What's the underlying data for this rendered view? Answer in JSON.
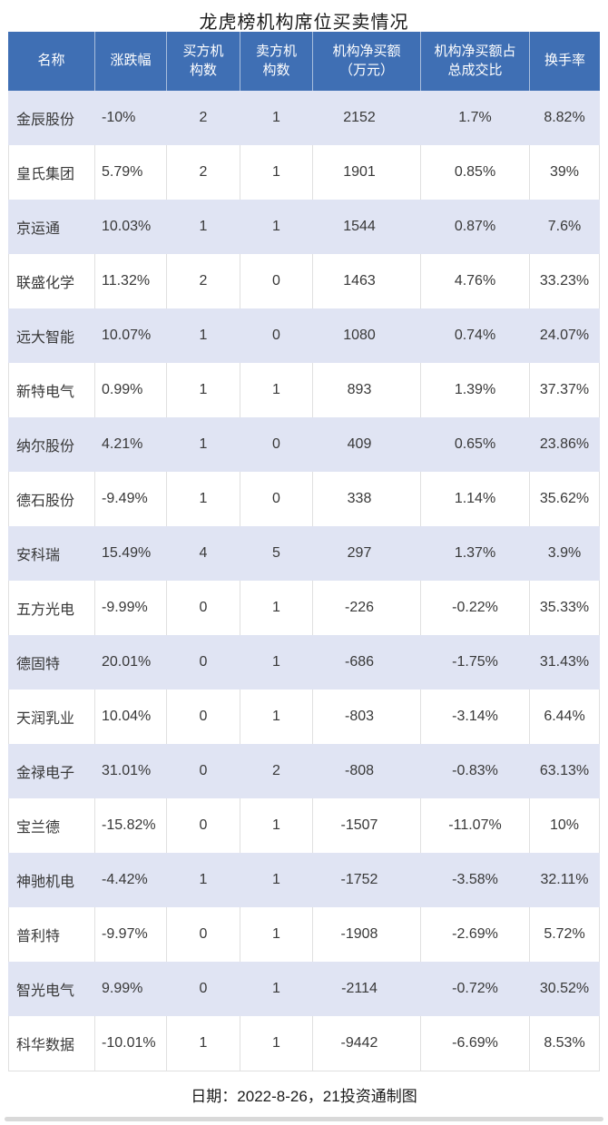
{
  "title": "龙虎榜机构席位买卖情况",
  "chart_data": {
    "type": "table",
    "title": "龙虎榜机构席位买卖情况",
    "columns": [
      "名称",
      "涨跌幅",
      "买方机构数",
      "卖方机构数",
      "机构净买额（万元）",
      "机构净买额占总成交比",
      "换手率"
    ],
    "header_display": [
      "名称",
      "涨跌幅",
      "买方机\n构数",
      "卖方机\n构数",
      "机构净买额\n（万元）",
      "机构净买额占\n总成交比",
      "换手率"
    ],
    "rows": [
      [
        "金辰股份",
        "-10%",
        "2",
        "1",
        "2152",
        "1.7%",
        "8.82%"
      ],
      [
        "皇氏集团",
        "5.79%",
        "2",
        "1",
        "1901",
        "0.85%",
        "39%"
      ],
      [
        "京运通",
        "10.03%",
        "1",
        "1",
        "1544",
        "0.87%",
        "7.6%"
      ],
      [
        "联盛化学",
        "11.32%",
        "2",
        "0",
        "1463",
        "4.76%",
        "33.23%"
      ],
      [
        "远大智能",
        "10.07%",
        "1",
        "0",
        "1080",
        "0.74%",
        "24.07%"
      ],
      [
        "新特电气",
        "0.99%",
        "1",
        "1",
        "893",
        "1.39%",
        "37.37%"
      ],
      [
        "纳尔股份",
        "4.21%",
        "1",
        "0",
        "409",
        "0.65%",
        "23.86%"
      ],
      [
        "德石股份",
        "-9.49%",
        "1",
        "0",
        "338",
        "1.14%",
        "35.62%"
      ],
      [
        "安科瑞",
        "15.49%",
        "4",
        "5",
        "297",
        "1.37%",
        "3.9%"
      ],
      [
        "五方光电",
        "-9.99%",
        "0",
        "1",
        "-226",
        "-0.22%",
        "35.33%"
      ],
      [
        "德固特",
        "20.01%",
        "0",
        "1",
        "-686",
        "-1.75%",
        "31.43%"
      ],
      [
        "天润乳业",
        "10.04%",
        "0",
        "1",
        "-803",
        "-3.14%",
        "6.44%"
      ],
      [
        "金禄电子",
        "31.01%",
        "0",
        "2",
        "-808",
        "-0.83%",
        "63.13%"
      ],
      [
        "宝兰德",
        "-15.82%",
        "0",
        "1",
        "-1507",
        "-11.07%",
        "10%"
      ],
      [
        "神驰机电",
        "-4.42%",
        "1",
        "1",
        "-1752",
        "-3.58%",
        "32.11%"
      ],
      [
        "普利特",
        "-9.97%",
        "0",
        "1",
        "-1908",
        "-2.69%",
        "5.72%"
      ],
      [
        "智光电气",
        "9.99%",
        "0",
        "1",
        "-2114",
        "-0.72%",
        "30.52%"
      ],
      [
        "科华数据",
        "-10.01%",
        "1",
        "1",
        "-9442",
        "-6.69%",
        "8.53%"
      ]
    ],
    "footnote": "日期：2022-8-26，21投资通制图"
  },
  "colors": {
    "header_bg": "#3f6fb4",
    "header_text": "#ffffff",
    "row_alt_bg": "#e0e4f3",
    "row_bg": "#ffffff",
    "divider": "#e0e0e0",
    "text": "#383838",
    "title_text": "#1a1a1a",
    "footer_bar": "#d9d9d9",
    "page_bg": "#ffffff"
  }
}
